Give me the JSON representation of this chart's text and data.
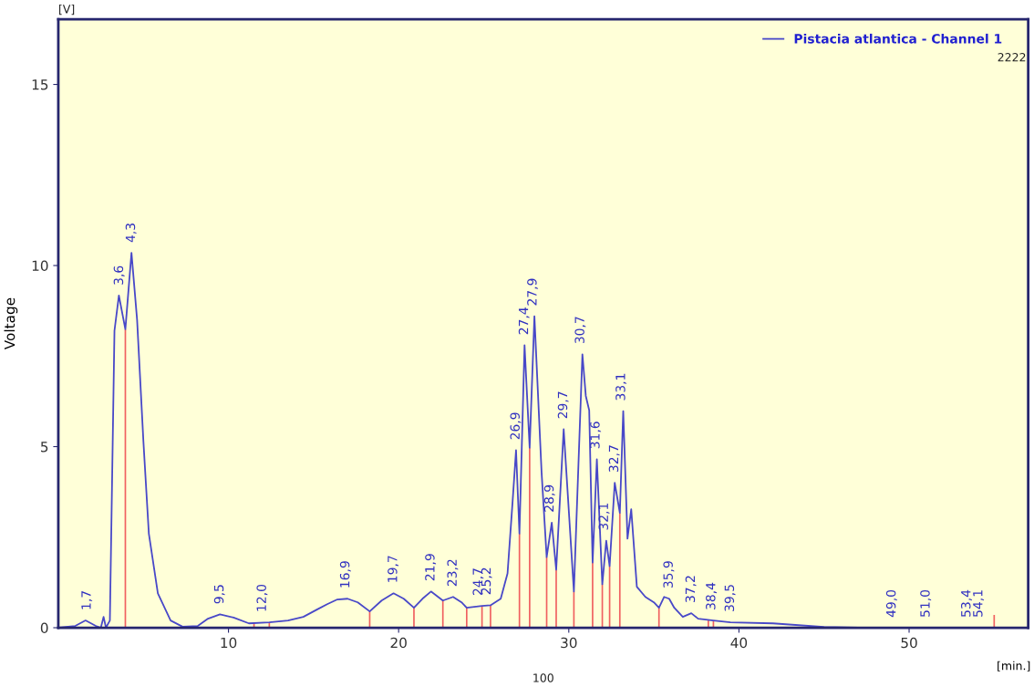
{
  "chart_data": {
    "type": "line",
    "ylabel": "Voltage",
    "xlabel": "[min.]",
    "xlim": [
      0,
      57
    ],
    "xticks": [
      10,
      20,
      30,
      40,
      50
    ],
    "ylim": [
      0,
      16.8
    ],
    "yticks": [
      0,
      5,
      10,
      15
    ],
    "grid": false,
    "legend": "top right",
    "series": [
      {
        "name": "Pistacia atlantica - Channel 1",
        "color": "#4848c8",
        "x": [
          0,
          1.0,
          1.6,
          2.2,
          2.5,
          2.66,
          2.8,
          3.03,
          3.3,
          3.56,
          3.94,
          4.3,
          4.63,
          5.0,
          5.32,
          5.85,
          6.6,
          7.3,
          8.2,
          8.8,
          9.5,
          10.3,
          11.2,
          12.4,
          13.5,
          14.4,
          15.2,
          15.8,
          16.4,
          17.0,
          17.6,
          18.3,
          19.0,
          19.7,
          20.3,
          20.9,
          21.4,
          21.9,
          22.6,
          23.2,
          23.7,
          24.0,
          24.9,
          25.4,
          26.0,
          26.4,
          26.7,
          26.9,
          27.1,
          27.4,
          27.7,
          27.98,
          28.4,
          28.7,
          29.0,
          29.26,
          29.7,
          30.3,
          30.8,
          31.0,
          31.2,
          31.4,
          31.65,
          31.97,
          32.2,
          32.4,
          32.7,
          33.0,
          33.2,
          33.45,
          33.67,
          34.0,
          34.5,
          35.0,
          35.3,
          35.6,
          35.9,
          36.2,
          36.7,
          37.2,
          37.6,
          38.5,
          39.5,
          42,
          45,
          47,
          57
        ],
        "values": [
          0.0,
          0.05,
          0.2,
          0.05,
          0.0,
          0.3,
          0.0,
          0.2,
          8.2,
          9.17,
          8.24,
          10.35,
          8.5,
          5.15,
          2.6,
          0.95,
          0.2,
          0.03,
          0.05,
          0.25,
          0.37,
          0.28,
          0.12,
          0.15,
          0.2,
          0.3,
          0.5,
          0.65,
          0.78,
          0.8,
          0.7,
          0.45,
          0.75,
          0.95,
          0.8,
          0.55,
          0.8,
          1.0,
          0.75,
          0.85,
          0.7,
          0.55,
          0.6,
          0.62,
          0.8,
          1.5,
          3.5,
          4.9,
          2.6,
          7.8,
          4.97,
          8.6,
          4.3,
          1.95,
          2.9,
          1.6,
          5.48,
          1.0,
          7.55,
          6.4,
          6.0,
          1.8,
          4.65,
          1.2,
          2.4,
          1.7,
          4.0,
          3.17,
          5.98,
          2.46,
          3.27,
          1.13,
          0.85,
          0.7,
          0.55,
          0.85,
          0.8,
          0.55,
          0.3,
          0.4,
          0.25,
          0.2,
          0.15,
          0.12,
          0.02,
          0.0,
          0.0
        ]
      },
      {
        "type": "bar",
        "color": "#f06060",
        "x": [
          3.94,
          11.5,
          12.4,
          18.3,
          20.9,
          22.6,
          24.0,
          24.9,
          25.4,
          27.1,
          27.7,
          28.7,
          29.26,
          30.3,
          31.4,
          31.97,
          32.4,
          33.0,
          35.3,
          38.2,
          38.5,
          55.0
        ],
        "values": [
          8.24,
          0.12,
          0.15,
          0.45,
          0.55,
          0.75,
          0.55,
          0.6,
          0.62,
          2.6,
          4.97,
          1.95,
          1.6,
          1.0,
          1.8,
          1.2,
          1.7,
          3.17,
          0.55,
          0.2,
          0.2,
          0.35
        ]
      }
    ],
    "annotations": [
      {
        "text": "1,7",
        "x": 1.7,
        "y": 0.2
      },
      {
        "text": "3,6",
        "x": 3.6,
        "y": 9.17
      },
      {
        "text": "4,3",
        "x": 4.3,
        "y": 10.35
      },
      {
        "text": "9,5",
        "x": 9.5,
        "y": 0.37
      },
      {
        "text": "12,0",
        "x": 12.0,
        "y": 0.15
      },
      {
        "text": "16,9",
        "x": 16.9,
        "y": 0.8
      },
      {
        "text": "19,7",
        "x": 19.7,
        "y": 0.95
      },
      {
        "text": "21,9",
        "x": 21.9,
        "y": 1.0
      },
      {
        "text": "23,2",
        "x": 23.2,
        "y": 0.85
      },
      {
        "text": "24,7",
        "x": 24.7,
        "y": 0.6
      },
      {
        "text": "25,2",
        "x": 25.2,
        "y": 0.62
      },
      {
        "text": "26,9",
        "x": 26.9,
        "y": 4.9
      },
      {
        "text": "27,4",
        "x": 27.4,
        "y": 7.8
      },
      {
        "text": "27,9",
        "x": 27.9,
        "y": 8.6
      },
      {
        "text": "28,9",
        "x": 28.9,
        "y": 2.9
      },
      {
        "text": "29,7",
        "x": 29.7,
        "y": 5.48
      },
      {
        "text": "30,7",
        "x": 30.7,
        "y": 7.55
      },
      {
        "text": "31,6",
        "x": 31.6,
        "y": 4.65
      },
      {
        "text": "32,1",
        "x": 32.1,
        "y": 2.4
      },
      {
        "text": "32,7",
        "x": 32.7,
        "y": 4.0
      },
      {
        "text": "33,1",
        "x": 33.1,
        "y": 5.98
      },
      {
        "text": "35,9",
        "x": 35.9,
        "y": 0.8
      },
      {
        "text": "37,2",
        "x": 37.2,
        "y": 0.4
      },
      {
        "text": "38,4",
        "x": 38.4,
        "y": 0.2
      },
      {
        "text": "39,5",
        "x": 39.5,
        "y": 0.15
      },
      {
        "text": "49,0",
        "x": 49.0,
        "y": 0.0
      },
      {
        "text": "51,0",
        "x": 51.0,
        "y": 0.0
      },
      {
        "text": "53,4",
        "x": 53.4,
        "y": 0.0
      },
      {
        "text": "54,1",
        "x": 54.1,
        "y": 0.0
      },
      "[V]",
      "100",
      "2222"
    ]
  }
}
